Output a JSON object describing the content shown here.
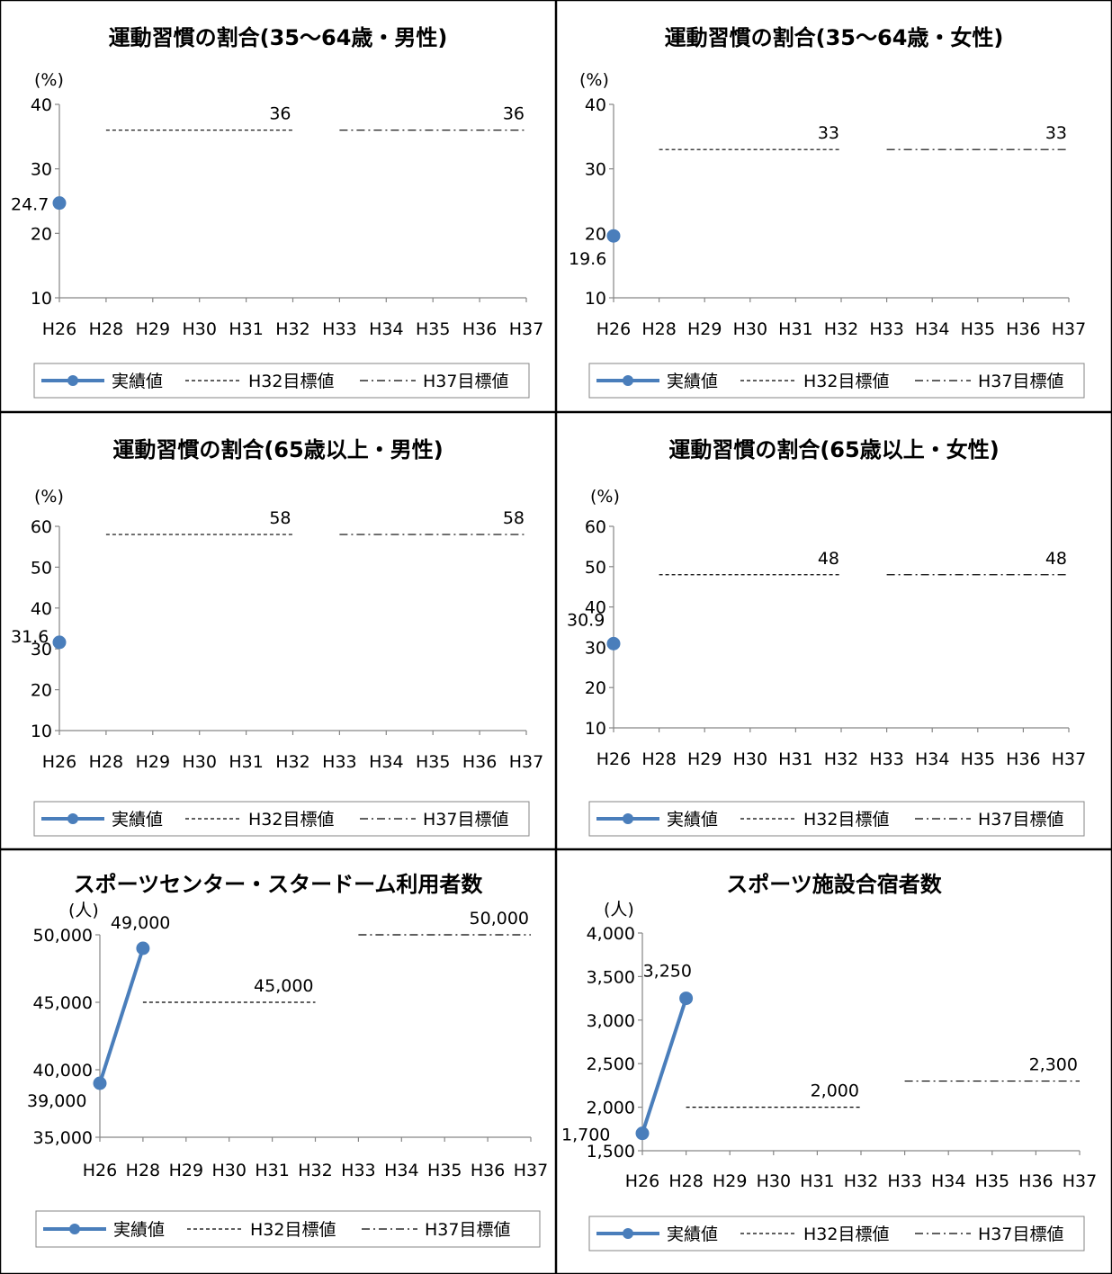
{
  "categories_shared": [
    "H26",
    "H28",
    "H29",
    "H30",
    "H31",
    "H32",
    "H33",
    "H34",
    "H35",
    "H36",
    "H37"
  ],
  "legend": {
    "actual": "実績値",
    "target32": "H32目標値",
    "target37": "H37目標値"
  },
  "colors": {
    "actual": "#4a7ebb",
    "grid": "#868686",
    "target": "#000000"
  },
  "chart_data": [
    {
      "type": "line",
      "title": "運動習慣の割合(35～64歳・男性)",
      "ylabel": "(%)",
      "categories": [
        "H26",
        "H28",
        "H29",
        "H30",
        "H31",
        "H32",
        "H33",
        "H34",
        "H35",
        "H36",
        "H37"
      ],
      "ylim": [
        10,
        40
      ],
      "yticks": [
        "10",
        "20",
        "30",
        "40"
      ],
      "series": [
        {
          "name": "実績値",
          "points": [
            {
              "x": "H26",
              "y": 24.7,
              "label": "24.7"
            }
          ]
        },
        {
          "name": "H32目標値",
          "from": "H28",
          "to": "H32",
          "y": 36,
          "label": "36"
        },
        {
          "name": "H37目標値",
          "from": "H33",
          "to": "H37",
          "y": 36,
          "label": "36"
        }
      ]
    },
    {
      "type": "line",
      "title": "運動習慣の割合(35～64歳・女性)",
      "ylabel": "(%)",
      "categories": [
        "H26",
        "H28",
        "H29",
        "H30",
        "H31",
        "H32",
        "H33",
        "H34",
        "H35",
        "H36",
        "H37"
      ],
      "ylim": [
        10,
        40
      ],
      "yticks": [
        "10",
        "20",
        "30",
        "40"
      ],
      "series": [
        {
          "name": "実績値",
          "points": [
            {
              "x": "H26",
              "y": 19.6,
              "label": "19.6"
            }
          ]
        },
        {
          "name": "H32目標値",
          "from": "H28",
          "to": "H32",
          "y": 33,
          "label": "33"
        },
        {
          "name": "H37目標値",
          "from": "H33",
          "to": "H37",
          "y": 33,
          "label": "33"
        }
      ]
    },
    {
      "type": "line",
      "title": "運動習慣の割合(65歳以上・男性)",
      "ylabel": "(%)",
      "categories": [
        "H26",
        "H28",
        "H29",
        "H30",
        "H31",
        "H32",
        "H33",
        "H34",
        "H35",
        "H36",
        "H37"
      ],
      "ylim": [
        10,
        60
      ],
      "yticks": [
        "10",
        "20",
        "30",
        "40",
        "50",
        "60"
      ],
      "series": [
        {
          "name": "実績値",
          "points": [
            {
              "x": "H26",
              "y": 31.6,
              "label": "31.6"
            }
          ]
        },
        {
          "name": "H32目標値",
          "from": "H28",
          "to": "H32",
          "y": 58,
          "label": "58"
        },
        {
          "name": "H37目標値",
          "from": "H33",
          "to": "H37",
          "y": 58,
          "label": "58"
        }
      ]
    },
    {
      "type": "line",
      "title": "運動習慣の割合(65歳以上・女性)",
      "ylabel": "(%)",
      "categories": [
        "H26",
        "H28",
        "H29",
        "H30",
        "H31",
        "H32",
        "H33",
        "H34",
        "H35",
        "H36",
        "H37"
      ],
      "ylim": [
        10,
        60
      ],
      "yticks": [
        "10",
        "20",
        "30",
        "40",
        "50",
        "60"
      ],
      "series": [
        {
          "name": "実績値",
          "points": [
            {
              "x": "H26",
              "y": 30.9,
              "label": "30.9"
            }
          ]
        },
        {
          "name": "H32目標値",
          "from": "H28",
          "to": "H32",
          "y": 48,
          "label": "48"
        },
        {
          "name": "H37目標値",
          "from": "H33",
          "to": "H37",
          "y": 48,
          "label": "48"
        }
      ]
    },
    {
      "type": "line",
      "title": "スポーツセンター・スタードーム利用者数",
      "ylabel": "(人)",
      "categories": [
        "H26",
        "H28",
        "H29",
        "H30",
        "H31",
        "H32",
        "H33",
        "H34",
        "H35",
        "H36",
        "H37"
      ],
      "ylim": [
        35000,
        50000
      ],
      "yticks": [
        "35,000",
        "40,000",
        "45,000",
        "50,000"
      ],
      "series": [
        {
          "name": "実績値",
          "points": [
            {
              "x": "H26",
              "y": 39000,
              "label": "39,000"
            },
            {
              "x": "H28",
              "y": 49000,
              "label": "49,000"
            }
          ]
        },
        {
          "name": "H32目標値",
          "from": "H28",
          "to": "H32",
          "y": 45000,
          "label": "45,000"
        },
        {
          "name": "H37目標値",
          "from": "H33",
          "to": "H37",
          "y": 50000,
          "label": "50,000"
        }
      ]
    },
    {
      "type": "line",
      "title": "スポーツ施設合宿者数",
      "ylabel": "(人)",
      "categories": [
        "H26",
        "H28",
        "H29",
        "H30",
        "H31",
        "H32",
        "H33",
        "H34",
        "H35",
        "H36",
        "H37"
      ],
      "ylim": [
        1500,
        4000
      ],
      "yticks": [
        "1,500",
        "2,000",
        "2,500",
        "3,000",
        "3,500",
        "4,000"
      ],
      "series": [
        {
          "name": "実績値",
          "points": [
            {
              "x": "H26",
              "y": 1700,
              "label": "1,700"
            },
            {
              "x": "H28",
              "y": 3250,
              "label": "3,250"
            }
          ]
        },
        {
          "name": "H32目標値",
          "from": "H28",
          "to": "H32",
          "y": 2000,
          "label": "2,000"
        },
        {
          "name": "H37目標値",
          "from": "H33",
          "to": "H37",
          "y": 2300,
          "label": "2,300"
        }
      ]
    }
  ]
}
